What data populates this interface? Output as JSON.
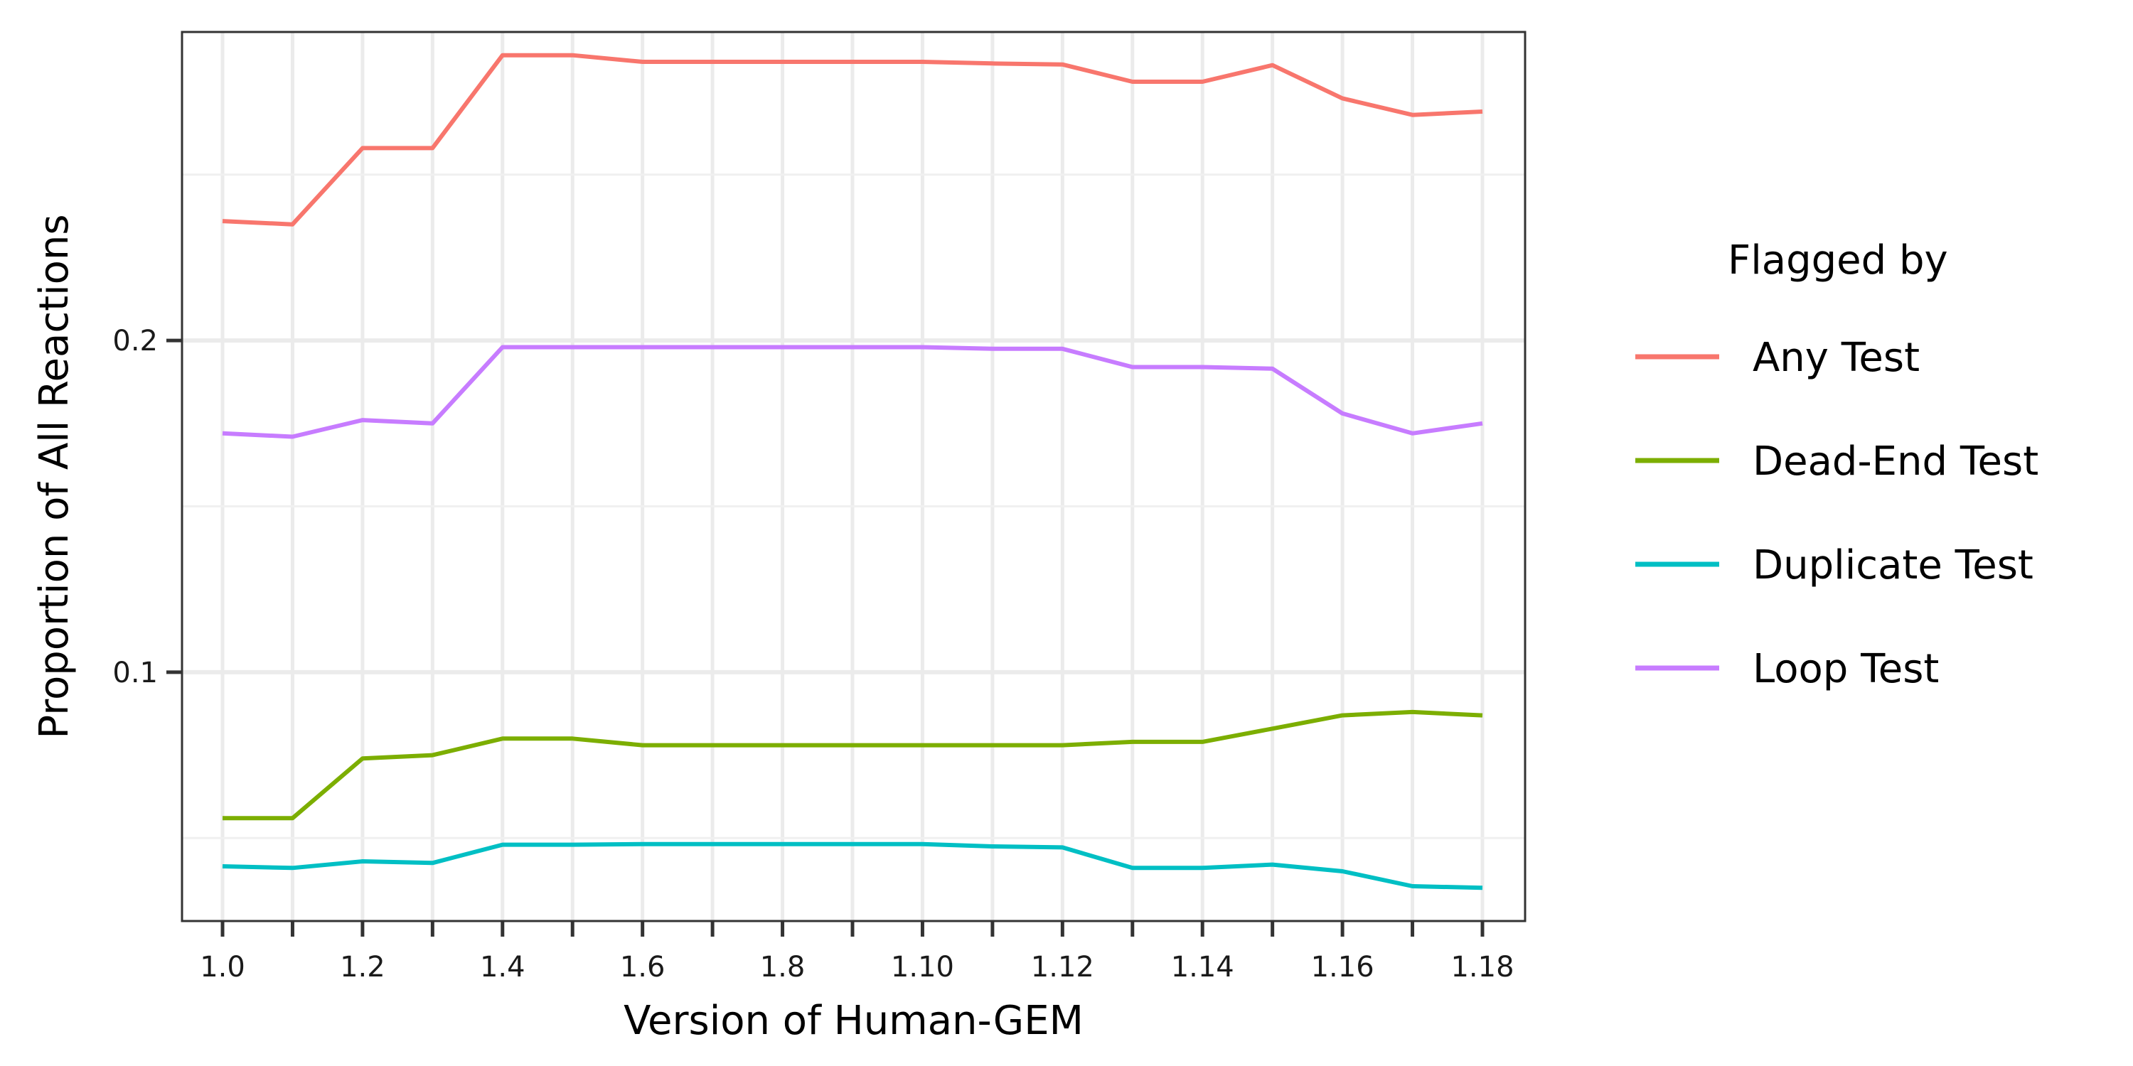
{
  "chart_data": {
    "type": "line",
    "xlabel": "Version of Human-GEM",
    "ylabel": "Proportion of All Reactions",
    "x": [
      "1.0",
      "1.1",
      "1.2",
      "1.3",
      "1.4",
      "1.5",
      "1.6",
      "1.7",
      "1.8",
      "1.9",
      "1.10",
      "1.11",
      "1.12",
      "1.13",
      "1.14",
      "1.15",
      "1.16",
      "1.17",
      "1.18"
    ],
    "x_tick_labels": [
      "1.0",
      "1.2",
      "1.4",
      "1.6",
      "1.8",
      "1.10",
      "1.12",
      "1.14",
      "1.16",
      "1.18"
    ],
    "y_ticks": [
      0.1,
      0.2
    ],
    "y_tick_labels": [
      "0.1",
      "0.2"
    ],
    "ylim": [
      0.025,
      0.293
    ],
    "grid": true,
    "legend_title": "Flagged by",
    "legend_position": "right",
    "series": [
      {
        "name": "Any Test",
        "color": "#F8766D",
        "values": [
          0.236,
          0.235,
          0.258,
          0.258,
          0.286,
          0.286,
          0.284,
          0.284,
          0.284,
          0.284,
          0.284,
          0.2835,
          0.2832,
          0.278,
          0.278,
          0.283,
          0.273,
          0.268,
          0.269
        ]
      },
      {
        "name": "Dead-End Test",
        "color": "#7CAE00",
        "values": [
          0.056,
          0.056,
          0.074,
          0.075,
          0.08,
          0.08,
          0.078,
          0.078,
          0.078,
          0.078,
          0.078,
          0.078,
          0.078,
          0.079,
          0.079,
          0.083,
          0.087,
          0.088,
          0.087
        ]
      },
      {
        "name": "Duplicate Test",
        "color": "#00BFC4",
        "values": [
          0.0415,
          0.041,
          0.043,
          0.0425,
          0.048,
          0.048,
          0.0482,
          0.0482,
          0.0482,
          0.0482,
          0.0482,
          0.0475,
          0.0472,
          0.041,
          0.041,
          0.042,
          0.04,
          0.0355,
          0.035
        ]
      },
      {
        "name": "Loop Test",
        "color": "#C77CFF",
        "values": [
          0.172,
          0.171,
          0.176,
          0.175,
          0.198,
          0.198,
          0.198,
          0.198,
          0.198,
          0.198,
          0.198,
          0.1975,
          0.1975,
          0.192,
          0.192,
          0.1915,
          0.178,
          0.172,
          0.175
        ]
      }
    ]
  }
}
